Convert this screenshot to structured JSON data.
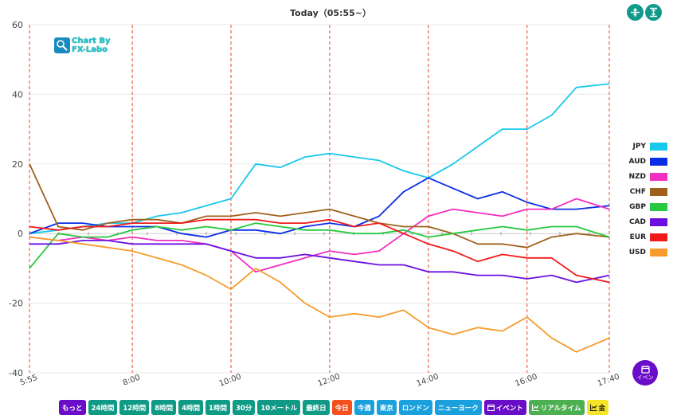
{
  "title": "Today（05:55~）",
  "logo": {
    "line1": "Chart By",
    "line2": "FX-Labo"
  },
  "top_buttons": [
    {
      "icon": "compress-vertical-icon"
    },
    {
      "icon": "expand-vertical-icon"
    }
  ],
  "event_button": {
    "label": "イベン"
  },
  "colors": {
    "teal": "#0e9a85",
    "red": "#f4501e",
    "blue": "#1aa0dc",
    "purple": "#6a0dc8",
    "green": "#4caf50",
    "yellow": "#f5e427"
  },
  "buttons": [
    {
      "label": "もっと",
      "color": "#6a0dc8"
    },
    {
      "label": "24時間",
      "color": "#0e9a85"
    },
    {
      "label": "12時間",
      "color": "#0e9a85"
    },
    {
      "label": "8時間",
      "color": "#0e9a85"
    },
    {
      "label": "4時間",
      "color": "#0e9a85"
    },
    {
      "label": "1時間",
      "color": "#0e9a85"
    },
    {
      "label": "30分",
      "color": "#0e9a85"
    },
    {
      "label": "10メートル",
      "color": "#0e9a85"
    },
    {
      "label": "最終日",
      "color": "#0e9a85"
    },
    {
      "label": "今日",
      "color": "#f4501e"
    },
    {
      "label": "今週",
      "color": "#1aa0dc"
    },
    {
      "label": "東京",
      "color": "#1aa0dc"
    },
    {
      "label": "ロンドン",
      "color": "#1aa0dc"
    },
    {
      "label": "ニューヨーク",
      "color": "#1aa0dc"
    },
    {
      "label": "イベント",
      "color": "#6a0dc8",
      "icon": "calendar-icon"
    },
    {
      "label": "リアルタイム",
      "color": "#4caf50",
      "icon": "chart-icon"
    },
    {
      "label": "金",
      "color": "#f5e427",
      "icon": "chart-icon"
    }
  ],
  "chart_data": {
    "type": "line",
    "title": "Today（05:55~）",
    "x_ticks": [
      "5:55",
      "8:00",
      "10:00",
      "12:00",
      "14:00",
      "16:00",
      "17:40"
    ],
    "xlim": [
      "5:55",
      "17:40"
    ],
    "ylim": [
      -40,
      60
    ],
    "y_ticks": [
      -40,
      -20,
      0,
      20,
      40,
      60
    ],
    "vertical_markers": [
      "5:55",
      "8:00",
      "10:00",
      "12:00",
      "14:00",
      "16:00",
      "17:40"
    ],
    "legend_position": "right",
    "x": [
      "5:55",
      "6:30",
      "7:00",
      "7:30",
      "8:00",
      "8:30",
      "9:00",
      "9:30",
      "10:00",
      "10:30",
      "11:00",
      "11:30",
      "12:00",
      "12:30",
      "13:00",
      "13:30",
      "14:00",
      "14:30",
      "15:00",
      "15:30",
      "16:00",
      "16:30",
      "17:00",
      "17:40"
    ],
    "series": [
      {
        "name": "JPY",
        "color": "#19c8ea",
        "values": [
          0,
          1,
          2,
          3,
          3,
          5,
          6,
          8,
          10,
          20,
          19,
          22,
          23,
          22,
          21,
          18,
          16,
          20,
          25,
          30,
          30,
          34,
          42,
          43
        ]
      },
      {
        "name": "AUD",
        "color": "#0a2ee6",
        "values": [
          0,
          3,
          3,
          2,
          2,
          2,
          0,
          -1,
          1,
          1,
          0,
          2,
          3,
          2,
          5,
          12,
          16,
          13,
          10,
          12,
          9,
          7,
          7,
          8
        ]
      },
      {
        "name": "NZD",
        "color": "#f22ec0",
        "values": [
          -1,
          -2,
          -1,
          -2,
          -1,
          -2,
          -2,
          -3,
          -5,
          -11,
          -9,
          -7,
          -5,
          -6,
          -5,
          0,
          5,
          7,
          6,
          5,
          7,
          7,
          10,
          7
        ]
      },
      {
        "name": "CHF",
        "color": "#a0601c",
        "values": [
          20,
          2,
          1,
          3,
          4,
          4,
          3,
          5,
          5,
          6,
          5,
          6,
          7,
          5,
          3,
          2,
          2,
          0,
          -3,
          -3,
          -4,
          -1,
          0,
          -1
        ]
      },
      {
        "name": "GBP",
        "color": "#28c840",
        "values": [
          -10,
          0,
          -1,
          -1,
          1,
          2,
          1,
          2,
          1,
          3,
          2,
          1,
          1,
          0,
          0,
          1,
          -1,
          0,
          1,
          2,
          1,
          2,
          2,
          -1
        ]
      },
      {
        "name": "CAD",
        "color": "#6b10e0",
        "values": [
          -3,
          -3,
          -2,
          -2,
          -3,
          -3,
          -3,
          -3,
          -5,
          -7,
          -7,
          -6,
          -7,
          -8,
          -9,
          -9,
          -11,
          -11,
          -12,
          -12,
          -13,
          -12,
          -14,
          -12
        ]
      },
      {
        "name": "EUR",
        "color": "#f01a1a",
        "values": [
          2,
          1,
          2,
          2,
          3,
          3,
          3,
          4,
          4,
          4,
          3,
          3,
          4,
          2,
          3,
          0,
          -3,
          -5,
          -8,
          -6,
          -7,
          -7,
          -12,
          -14
        ]
      },
      {
        "name": "USD",
        "color": "#f59c2c",
        "values": [
          -1,
          -2,
          -3,
          -4,
          -5,
          -7,
          -9,
          -12,
          -16,
          -10,
          -14,
          -20,
          -24,
          -23,
          -24,
          -22,
          -27,
          -29,
          -27,
          -28,
          -24,
          -30,
          -34,
          -30
        ]
      }
    ]
  }
}
